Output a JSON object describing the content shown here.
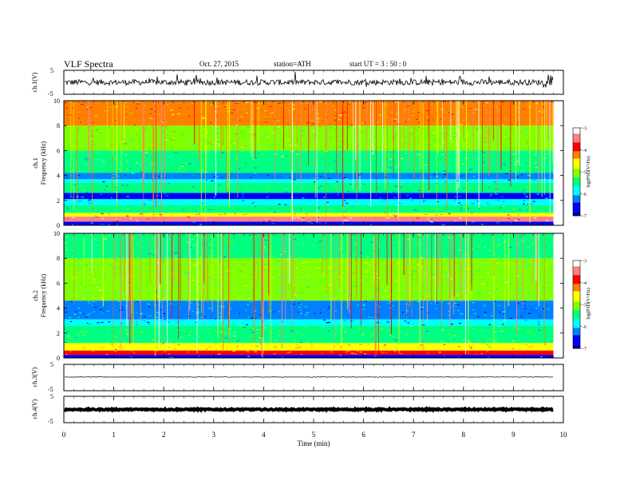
{
  "header": {
    "title": "VLF  Spectra",
    "date": "Oct. 27, 2015",
    "station": "station=ATH",
    "start": "start  UT  =   3  : 50 : 0"
  },
  "chart_data": [
    {
      "type": "line",
      "name": "ch1-waveform",
      "ylabel": "ch.1(V)",
      "ylim": [
        -5,
        5
      ],
      "y_ticks": [
        "5",
        "-5"
      ],
      "x_range_min": [
        0,
        9.8
      ],
      "baseline_v": 0,
      "amplitude_v": 1.2
    },
    {
      "type": "heatmap",
      "name": "ch1-spectrogram",
      "ylabel": [
        "ch.1",
        "Frequency  (kHz)"
      ],
      "ylim": [
        0,
        10
      ],
      "y_ticks": [
        "0",
        "2",
        "4",
        "6",
        "8",
        "10"
      ],
      "x_range_min": [
        0,
        9.8
      ],
      "colorbar": {
        "label": "log(PSD(V²/Hz)",
        "ticks": [
          "-3",
          "-4",
          "-5",
          "-6",
          "-7"
        ],
        "range": [
          -7,
          -3
        ]
      },
      "bands_khz": [
        {
          "from": 0,
          "to": 0.3,
          "level": -6.6
        },
        {
          "from": 0.3,
          "to": 0.7,
          "level": -3.6
        },
        {
          "from": 0.7,
          "to": 1.0,
          "level": -4.5
        },
        {
          "from": 1.0,
          "to": 1.6,
          "level": -5.5
        },
        {
          "from": 1.6,
          "to": 2.1,
          "level": -5.9
        },
        {
          "from": 2.1,
          "to": 2.6,
          "level": -6.4
        },
        {
          "from": 2.6,
          "to": 3.4,
          "level": -5.6
        },
        {
          "from": 3.4,
          "to": 3.7,
          "level": -5.8
        },
        {
          "from": 3.7,
          "to": 4.2,
          "level": -6.3
        },
        {
          "from": 4.2,
          "to": 6.0,
          "level": -5.4
        },
        {
          "from": 6.0,
          "to": 8.0,
          "level": -4.9
        },
        {
          "from": 8.0,
          "to": 10.0,
          "level": -4.3
        }
      ]
    },
    {
      "type": "heatmap",
      "name": "ch2-spectrogram",
      "ylabel": [
        "ch.2",
        "Frequency  (kHz)"
      ],
      "ylim": [
        0,
        10
      ],
      "y_ticks": [
        "0",
        "2",
        "4",
        "6",
        "8",
        "10"
      ],
      "x_range_min": [
        0,
        9.8
      ],
      "colorbar": {
        "label": "log(PSD(V²/Hz)",
        "ticks": [
          "-3",
          "-4",
          "-5",
          "-6",
          "-7"
        ],
        "range": [
          -7,
          -3
        ]
      },
      "bands_khz": [
        {
          "from": 0,
          "to": 0.25,
          "level": -6.6
        },
        {
          "from": 0.25,
          "to": 0.6,
          "level": -3.9
        },
        {
          "from": 0.6,
          "to": 1.2,
          "level": -4.6
        },
        {
          "from": 1.2,
          "to": 2.6,
          "level": -5.3
        },
        {
          "from": 2.6,
          "to": 3.1,
          "level": -6.0
        },
        {
          "from": 3.1,
          "to": 4.6,
          "level": -6.1
        },
        {
          "from": 4.6,
          "to": 6.5,
          "level": -5.2
        },
        {
          "from": 6.5,
          "to": 8.0,
          "level": -5.0
        },
        {
          "from": 8.0,
          "to": 10.0,
          "level": -5.3
        }
      ]
    },
    {
      "type": "line",
      "name": "ch3-waveform",
      "ylabel": "ch.3(V)",
      "ylim": [
        -5,
        5
      ],
      "y_ticks": [
        "5",
        "-5"
      ],
      "x_range_min": [
        0,
        9.8
      ],
      "baseline_v": 0.2,
      "amplitude_v": 0.1
    },
    {
      "type": "line",
      "name": "ch4-waveform",
      "ylabel": "ch.4(V)",
      "ylim": [
        -5,
        5
      ],
      "y_ticks": [
        "5",
        "-5"
      ],
      "x_range_min": [
        0,
        9.8
      ],
      "baseline_v": 0,
      "amplitude_v": 0.25
    }
  ],
  "x_axis": {
    "xlabel": "Time  (min)",
    "xlim": [
      0,
      10
    ],
    "ticks": [
      "0",
      "1",
      "2",
      "3",
      "4",
      "5",
      "6",
      "7",
      "8",
      "9",
      "10"
    ]
  },
  "colormap": [
    "#000080",
    "#0000ff",
    "#0080ff",
    "#00ffff",
    "#00ff80",
    "#80ff00",
    "#ffff00",
    "#ff8000",
    "#ff0000",
    "#ff8080",
    "#ffffff"
  ]
}
